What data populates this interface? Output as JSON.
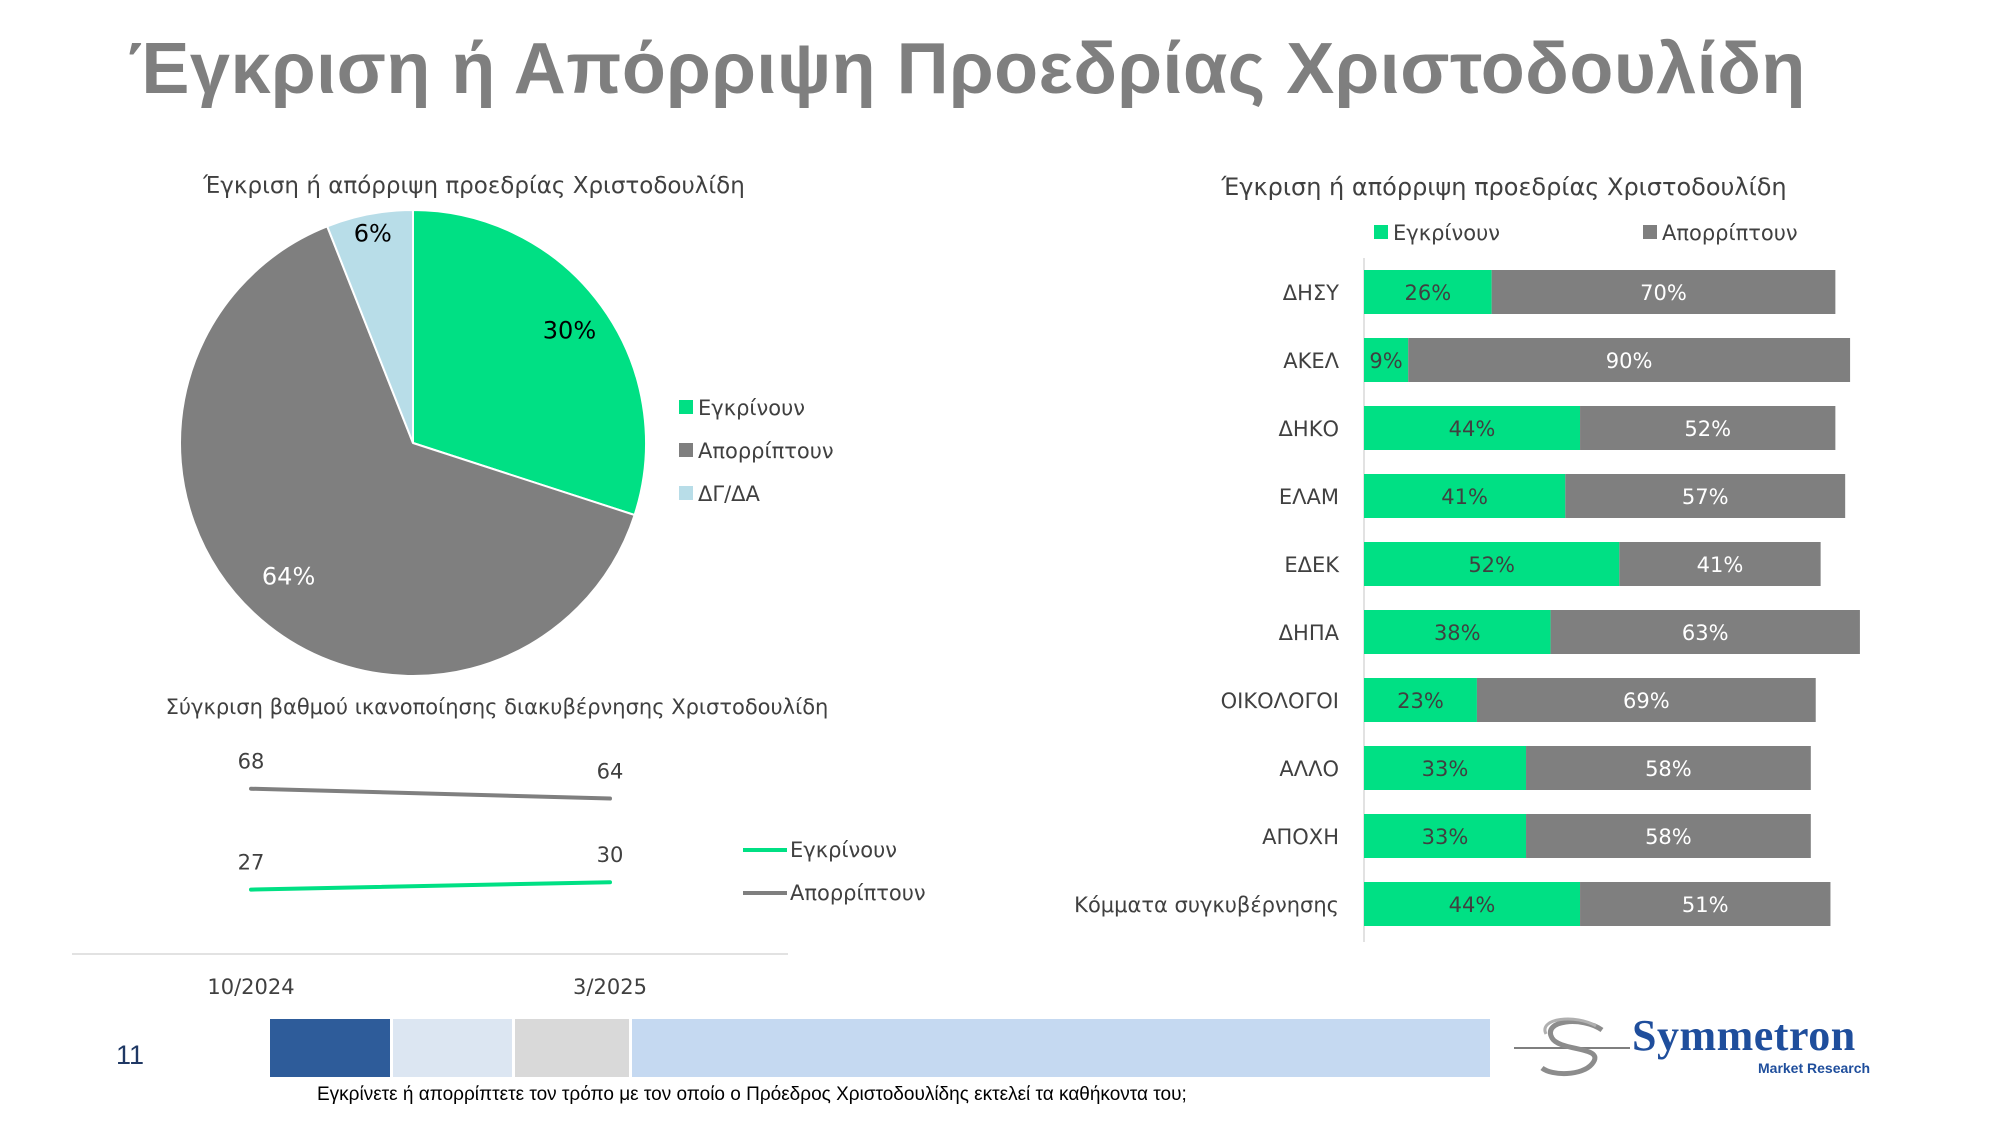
{
  "slide": {
    "title": "Έγκριση ή Απόρριψη Προεδρίας Χριστοδουλίδη",
    "number": "11",
    "footnote": "Εγκρίνετε ή απορρίπτετε τον τρόπο με τον οποίο ο Πρόεδρος Χριστοδουλίδης εκτελεί τα καθήκοντα του;",
    "logo": {
      "name": "Symmetron",
      "subtitle": "Market Research"
    }
  },
  "colors": {
    "approve": "#00e084",
    "reject": "#7f7f7f",
    "dk": "#b8dde8",
    "bar_blue": "#2e5c9a",
    "bar_light": "#dce6f2",
    "bar_gray": "#d9d9d9",
    "bar_sky": "#c5d9f1"
  },
  "chart_data": [
    {
      "type": "pie",
      "title": "Έγκριση ή απόρριψη προεδρίας Χριστοδουλίδη",
      "categories": [
        "Εγκρίνουν",
        "Απορρίπτουν",
        "ΔΓ/ΔΑ"
      ],
      "values": [
        30,
        64,
        6
      ],
      "labels": [
        "30%",
        "64%",
        "6%"
      ],
      "legend": "right"
    },
    {
      "type": "line",
      "title": "Σύγκριση βαθμού ικανοποίησης διακυβέρνησης Χριστοδουλίδη",
      "x": [
        "10/2024",
        "3/2025"
      ],
      "series": [
        {
          "name": "Εγκρίνουν",
          "values": [
            27,
            30
          ]
        },
        {
          "name": "Απορρίπτουν",
          "values": [
            68,
            64
          ]
        }
      ],
      "ylim": [
        0,
        100
      ],
      "legend": "right"
    },
    {
      "type": "bar",
      "orientation": "horizontal",
      "stacked": true,
      "title": "Έγκριση ή απόρριψη προεδρίας Χριστοδουλίδη",
      "categories": [
        "ΔΗΣΥ",
        "ΑΚΕΛ",
        "ΔΗΚΟ",
        "ΕΛΑΜ",
        "ΕΔΕΚ",
        "ΔΗΠΑ",
        "ΟΙΚΟΛΟΓΟΙ",
        "ΑΛΛΟ",
        "ΑΠΟΧΗ",
        "Κόμματα συγκυβέρνησης"
      ],
      "series": [
        {
          "name": "Εγκρίνουν",
          "values": [
            26,
            9,
            44,
            41,
            52,
            38,
            23,
            33,
            33,
            44
          ],
          "labels": [
            "26%",
            "9%",
            "44%",
            "41%",
            "52%",
            "38%",
            "23%",
            "33%",
            "33%",
            "44%"
          ]
        },
        {
          "name": "Απορρίπτουν",
          "values": [
            70,
            90,
            52,
            57,
            41,
            63,
            69,
            58,
            58,
            51
          ],
          "labels": [
            "70%",
            "90%",
            "52%",
            "57%",
            "41%",
            "63%",
            "69%",
            "58%",
            "58%",
            "51%"
          ]
        }
      ],
      "legend": "top"
    }
  ]
}
